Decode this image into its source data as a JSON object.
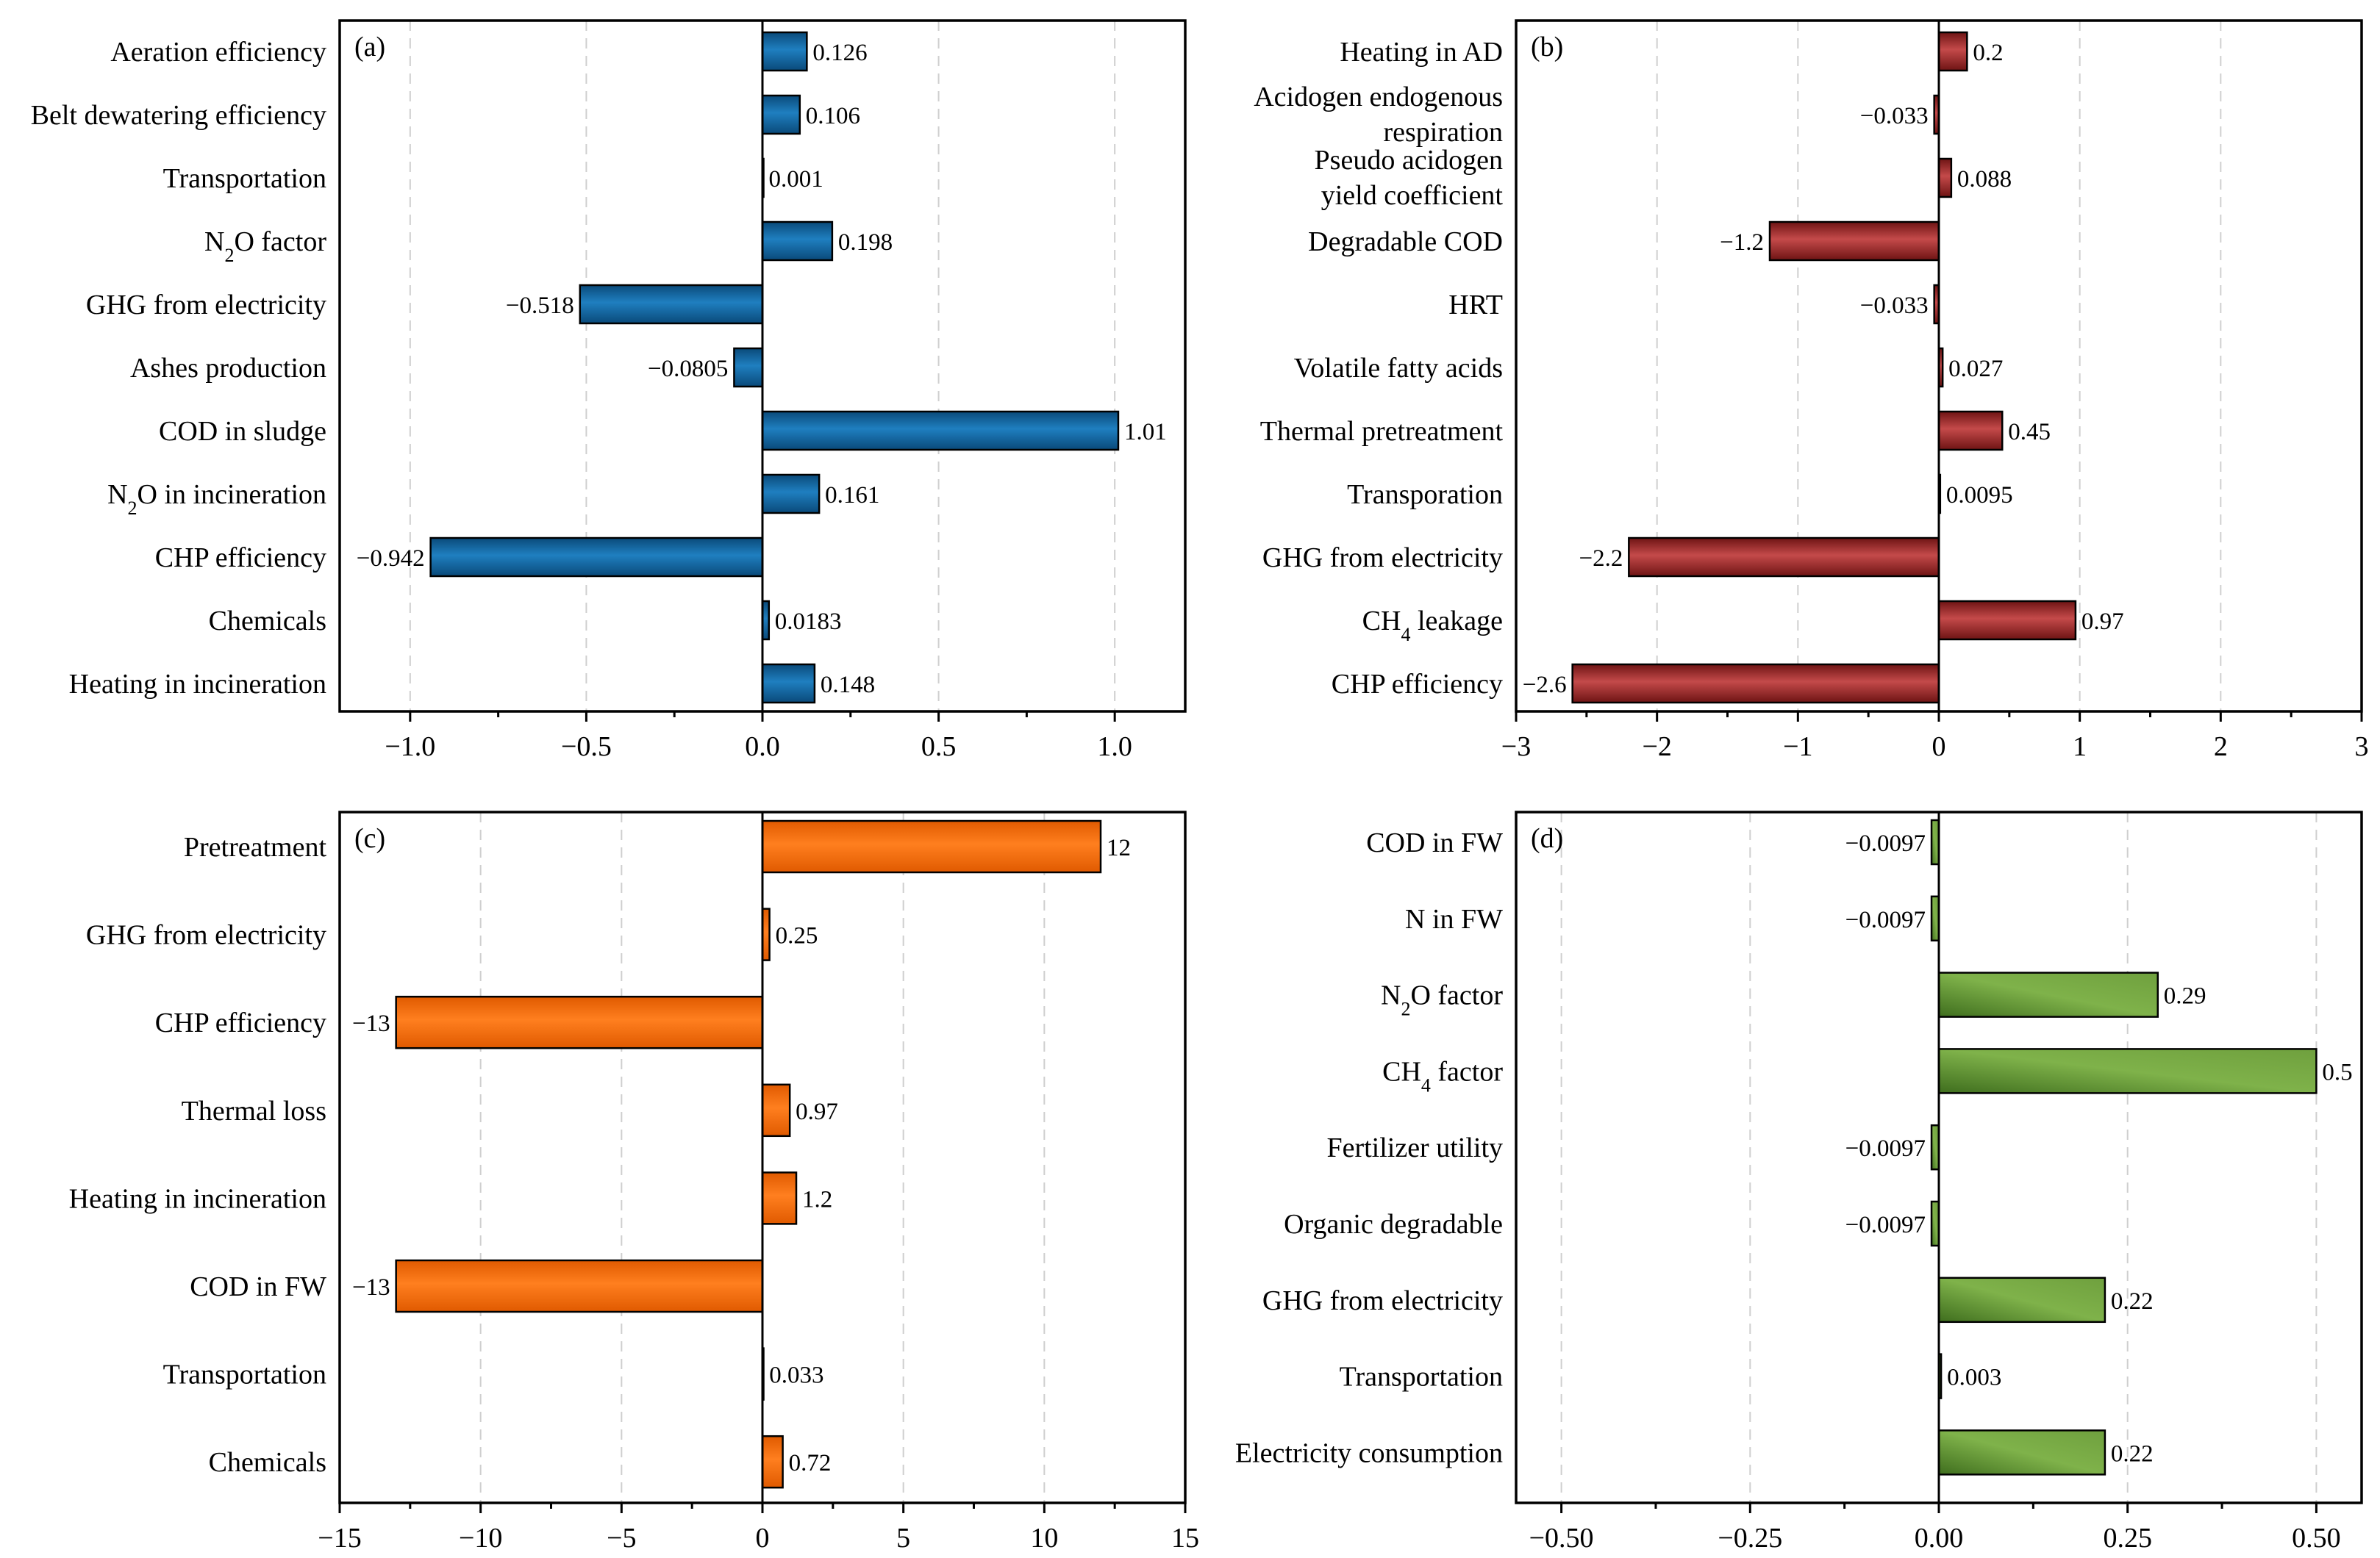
{
  "colors": {
    "a_dark": "#0a4a7a",
    "a_light": "#1f7fc0",
    "b_dark": "#6e1414",
    "b_light": "#c44a4a",
    "c_dark": "#e05a00",
    "c_light": "#ff7f1f",
    "d_dark": "#3f6e1e",
    "d_light": "#7fb24a"
  },
  "chart_data": [
    {
      "panel": "(a)",
      "type": "bar",
      "orientation": "horizontal",
      "categories": [
        "Aeration efficiency",
        "Belt dewatering efficiency",
        "Transportation",
        "N2O factor",
        "GHG from electricity",
        "Ashes production",
        "COD in sludge",
        "N2O in incineration",
        "CHP efficiency",
        "Chemicals",
        "Heating in incineration"
      ],
      "values": [
        0.126,
        0.106,
        0.001,
        0.198,
        -0.518,
        -0.0805,
        1.01,
        0.161,
        -0.942,
        0.0183,
        0.148
      ],
      "labels": [
        "0.126",
        "0.106",
        "0.001",
        "0.198",
        "−0.518",
        "−0.0805",
        "1.01",
        "0.161",
        "−0.942",
        "0.0183",
        "0.148"
      ],
      "xlim": [
        -1.2,
        1.2
      ],
      "ticks": [
        -1.0,
        -0.5,
        0.0,
        0.5,
        1.0
      ],
      "tick_labels": [
        "−1.0",
        "−0.5",
        "0.0",
        "0.5",
        "1.0"
      ],
      "grid": true
    },
    {
      "panel": "(b)",
      "type": "bar",
      "orientation": "horizontal",
      "categories": [
        "Heating in AD",
        "Acidogen endogenous respiration",
        "Pseudo acidogen yield coefficient",
        "Degradable COD",
        "HRT",
        "Volatile fatty acids",
        "Thermal pretreatment",
        "Transporation",
        "GHG from electricity",
        "CH4 leakage",
        "CHP efficiency"
      ],
      "values": [
        0.2,
        -0.033,
        0.088,
        -1.2,
        -0.033,
        0.027,
        0.45,
        0.0095,
        -2.2,
        0.97,
        -2.6
      ],
      "labels": [
        "0.2",
        "−0.033",
        "0.088",
        "−1.2",
        "−0.033",
        "0.027",
        "0.45",
        "0.0095",
        "−2.2",
        "0.97",
        "−2.6"
      ],
      "xlim": [
        -3,
        3
      ],
      "ticks": [
        -3,
        -2,
        -1,
        0,
        1,
        2,
        3
      ],
      "tick_labels": [
        "−3",
        "−2",
        "−1",
        "0",
        "1",
        "2",
        "3"
      ],
      "grid": true
    },
    {
      "panel": "(c)",
      "type": "bar",
      "orientation": "horizontal",
      "categories": [
        "Pretreatment",
        "GHG from electricity",
        "CHP efficiency",
        "Thermal loss",
        "Heating in incineration",
        "COD in FW",
        "Transportation",
        "Chemicals"
      ],
      "values": [
        12,
        0.25,
        -13,
        0.97,
        1.2,
        -13,
        0.033,
        0.72
      ],
      "labels": [
        "12",
        "0.25",
        "−13",
        "0.97",
        "1.2",
        "−13",
        "0.033",
        "0.72"
      ],
      "xlim": [
        -15,
        15
      ],
      "ticks": [
        -15,
        -10,
        -5,
        0,
        5,
        10,
        15
      ],
      "tick_labels": [
        "−15",
        "−10",
        "−5",
        "0",
        "5",
        "10",
        "15"
      ],
      "grid": true
    },
    {
      "panel": "(d)",
      "type": "bar",
      "orientation": "horizontal",
      "categories": [
        "COD in FW",
        "N in FW",
        "N2O factor",
        "CH4 factor",
        "Fertilizer utility",
        "Organic degradable",
        "GHG from electricity",
        "Transportation",
        "Electricity consumption"
      ],
      "values": [
        -0.0097,
        -0.0097,
        0.29,
        0.5,
        -0.0097,
        -0.0097,
        0.22,
        0.003,
        0.22
      ],
      "labels": [
        "−0.0097",
        "−0.0097",
        "0.29",
        "0.5",
        "−0.0097",
        "−0.0097",
        "0.22",
        "0.003",
        "0.22"
      ],
      "xlim": [
        -0.56,
        0.56
      ],
      "ticks": [
        -0.5,
        -0.25,
        0.0,
        0.25,
        0.5
      ],
      "tick_labels": [
        "−0.50",
        "−0.25",
        "0.00",
        "0.25",
        "0.50"
      ],
      "grid": true
    }
  ]
}
